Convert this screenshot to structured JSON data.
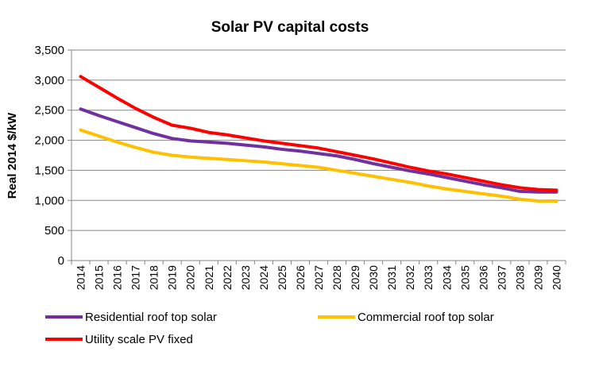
{
  "chart_data": {
    "type": "line",
    "title": "Solar PV capital costs",
    "xlabel": "",
    "ylabel": "Real 2014 $/kW",
    "ylim": [
      0,
      3500
    ],
    "yticks": [
      0,
      500,
      1000,
      1500,
      2000,
      2500,
      3000,
      3500
    ],
    "ytick_labels": [
      "0",
      "500",
      "1,000",
      "1,500",
      "2,000",
      "2,500",
      "3,000",
      "3,500"
    ],
    "categories": [
      "2014",
      "2015",
      "2016",
      "2017",
      "2018",
      "2019",
      "2020",
      "2021",
      "2022",
      "2023",
      "2024",
      "2025",
      "2026",
      "2027",
      "2028",
      "2029",
      "2030",
      "2031",
      "2032",
      "2033",
      "2034",
      "2035",
      "2036",
      "2037",
      "2038",
      "2039",
      "2040"
    ],
    "grid": "horizontal",
    "legend_position": "bottom",
    "series": [
      {
        "name": "Residential roof top solar",
        "color": "#7030a0",
        "values": [
          2520,
          2410,
          2310,
          2210,
          2110,
          2030,
          1990,
          1970,
          1950,
          1920,
          1890,
          1850,
          1820,
          1780,
          1740,
          1680,
          1610,
          1550,
          1490,
          1440,
          1380,
          1320,
          1260,
          1210,
          1150,
          1140,
          1140
        ]
      },
      {
        "name": "Commercial roof top solar",
        "color": "#ffc000",
        "values": [
          2170,
          2070,
          1970,
          1880,
          1800,
          1750,
          1720,
          1700,
          1680,
          1660,
          1640,
          1610,
          1580,
          1550,
          1500,
          1450,
          1400,
          1350,
          1300,
          1240,
          1190,
          1150,
          1110,
          1070,
          1020,
          990,
          990
        ]
      },
      {
        "name": "Utility scale PV fixed",
        "color": "#ff0000",
        "values": [
          3060,
          2880,
          2700,
          2530,
          2380,
          2250,
          2200,
          2130,
          2090,
          2040,
          1990,
          1950,
          1910,
          1870,
          1810,
          1750,
          1690,
          1620,
          1550,
          1490,
          1440,
          1380,
          1320,
          1260,
          1210,
          1180,
          1170
        ]
      }
    ]
  }
}
